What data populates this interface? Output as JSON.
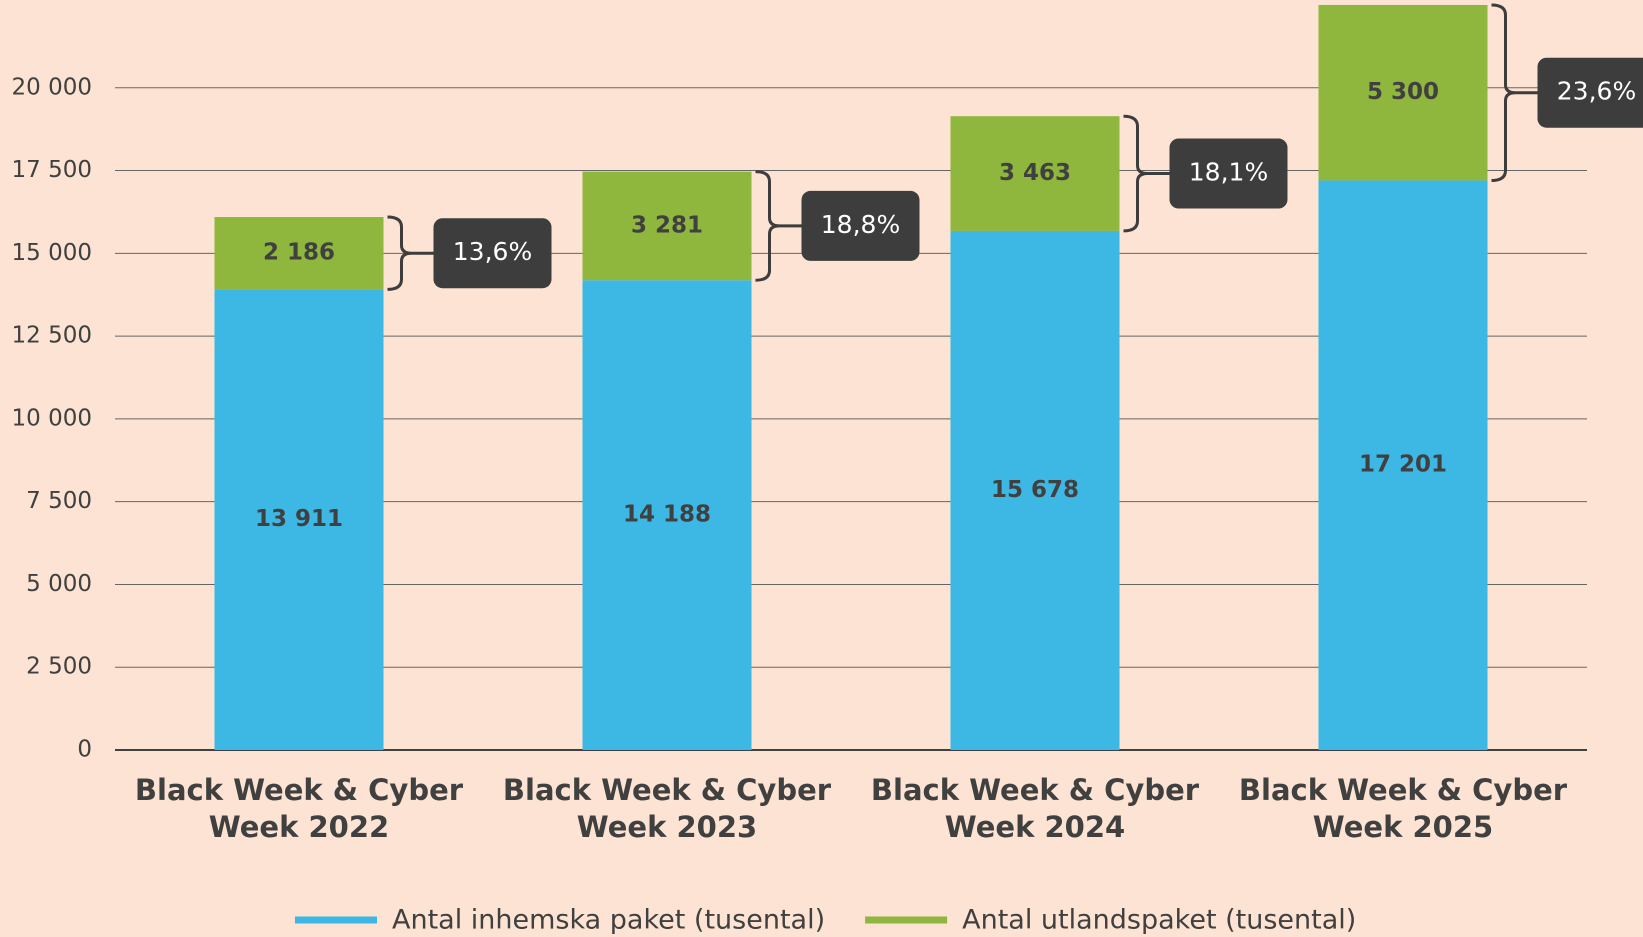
{
  "chart_data": {
    "type": "stacked_bar",
    "categories": [
      "Black Week & Cyber Week 2022",
      "Black Week & Cyber Week 2023",
      "Black Week & Cyber Week 2024",
      "Black Week & Cyber Week 2025"
    ],
    "series": [
      {
        "name": "Antal inhemska paket (tusental)",
        "color": "#3db7e4",
        "values": [
          13911,
          14188,
          15678,
          17201
        ],
        "value_labels": [
          "13 911",
          "14 188",
          "15 678",
          "17 201"
        ]
      },
      {
        "name": "Antal utlandspaket (tusental)",
        "color": "#8fb73e",
        "values": [
          2186,
          3281,
          3463,
          5300
        ],
        "value_labels": [
          "2 186",
          "3 281",
          "3 463",
          "5 300"
        ]
      }
    ],
    "annotations": [
      "13,6%",
      "18,8%",
      "18,1%",
      "23,6%"
    ],
    "ylim": [
      0,
      22500
    ],
    "yticks": [
      0,
      {
        "value": 2500,
        "label": "2 500"
      },
      {
        "value": 5000,
        "label": "5 000"
      },
      {
        "value": 7500,
        "label": "7 500"
      },
      {
        "value": 10000,
        "label": "10 000"
      },
      {
        "value": 12500,
        "label": "12 500"
      },
      {
        "value": 15000,
        "label": "15 000"
      },
      {
        "value": 17500,
        "label": "17 500"
      },
      {
        "value": 20000,
        "label": "20 000"
      }
    ],
    "grid": true,
    "legend": "bottom"
  }
}
